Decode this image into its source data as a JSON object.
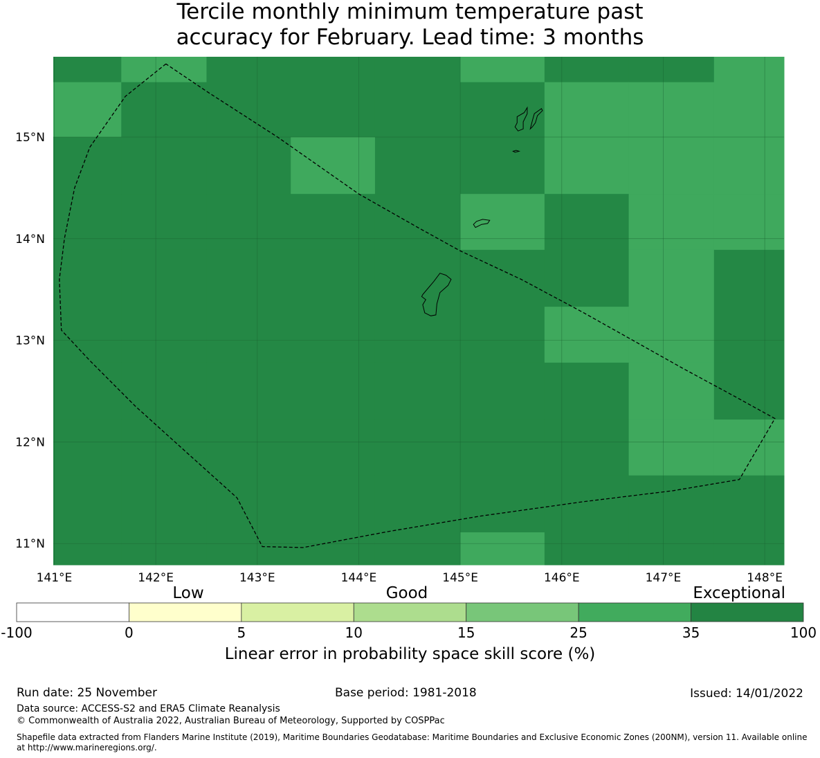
{
  "title_line1": "Tercile monthly minimum temperature past",
  "title_line2": "accuracy for February. Lead time: 3 months",
  "map": {
    "lon_labels": [
      "141°E",
      "142°E",
      "143°E",
      "144°E",
      "145°E",
      "146°E",
      "147°E",
      "148°E"
    ],
    "lat_labels": [
      "15°N",
      "14°N",
      "13°N",
      "12°N",
      "11°N"
    ],
    "lon_values": [
      141,
      142,
      143,
      144,
      145,
      146,
      147,
      148
    ],
    "lat_values": [
      15,
      14,
      13,
      12,
      11
    ],
    "extent": {
      "lon_min": 140.99,
      "lon_max": 148.19,
      "lat_min": 10.79,
      "lat_max": 15.79
    },
    "colors": {
      "dark": "#248845",
      "light": "#3fa95d",
      "grid": "#1a5e30",
      "outline": "#000000"
    },
    "score_grid_lons": [
      140.99,
      141.66,
      142.5,
      143.33,
      144.16,
      145.0,
      145.83,
      146.66,
      147.5,
      148.19
    ],
    "score_grid_lats": [
      15.79,
      15.54,
      15.0,
      14.44,
      13.89,
      13.33,
      12.78,
      12.22,
      11.67,
      11.11,
      10.79
    ],
    "score_grid": [
      [
        "dark",
        "light",
        "dark",
        "dark",
        "dark",
        "light",
        "dark",
        "dark",
        "light"
      ],
      [
        "light",
        "dark",
        "dark",
        "dark",
        "dark",
        "dark",
        "light",
        "light",
        "light"
      ],
      [
        "dark",
        "dark",
        "dark",
        "light",
        "dark",
        "dark",
        "light",
        "light",
        "light"
      ],
      [
        "dark",
        "dark",
        "dark",
        "dark",
        "dark",
        "light",
        "dark",
        "light",
        "light"
      ],
      [
        "dark",
        "dark",
        "dark",
        "dark",
        "dark",
        "dark",
        "dark",
        "light",
        "dark"
      ],
      [
        "dark",
        "dark",
        "dark",
        "dark",
        "dark",
        "dark",
        "light",
        "light",
        "dark"
      ],
      [
        "dark",
        "dark",
        "dark",
        "dark",
        "dark",
        "dark",
        "dark",
        "light",
        "dark"
      ],
      [
        "dark",
        "dark",
        "dark",
        "dark",
        "dark",
        "dark",
        "dark",
        "light",
        "light"
      ],
      [
        "dark",
        "dark",
        "dark",
        "dark",
        "dark",
        "dark",
        "dark",
        "dark",
        "dark"
      ],
      [
        "dark",
        "dark",
        "dark",
        "dark",
        "dark",
        "light",
        "dark",
        "dark",
        "dark"
      ]
    ],
    "eez_boundary": [
      [
        142.1,
        15.72
      ],
      [
        141.7,
        15.4
      ],
      [
        141.35,
        14.9
      ],
      [
        141.2,
        14.5
      ],
      [
        141.1,
        14.0
      ],
      [
        141.05,
        13.6
      ],
      [
        141.07,
        13.1
      ],
      [
        141.35,
        12.8
      ],
      [
        141.8,
        12.35
      ],
      [
        142.3,
        11.9
      ],
      [
        142.8,
        11.45
      ],
      [
        143.05,
        10.97
      ],
      [
        143.45,
        10.96
      ],
      [
        144.3,
        11.12
      ],
      [
        145.2,
        11.27
      ],
      [
        146.2,
        11.41
      ],
      [
        147.1,
        11.52
      ],
      [
        147.75,
        11.63
      ],
      [
        148.1,
        12.23
      ],
      [
        147.7,
        12.45
      ],
      [
        147.2,
        12.72
      ],
      [
        146.7,
        13.0
      ],
      [
        146.2,
        13.28
      ],
      [
        145.6,
        13.6
      ],
      [
        145.0,
        13.88
      ],
      [
        144.6,
        14.1
      ],
      [
        144.0,
        14.44
      ],
      [
        143.2,
        15.0
      ],
      [
        142.5,
        15.45
      ],
      [
        142.1,
        15.72
      ]
    ],
    "islands": [
      [
        [
          144.63,
          13.45
        ],
        [
          144.74,
          13.58
        ],
        [
          144.8,
          13.66
        ],
        [
          144.86,
          13.64
        ],
        [
          144.91,
          13.6
        ],
        [
          144.88,
          13.54
        ],
        [
          144.8,
          13.47
        ],
        [
          144.77,
          13.36
        ],
        [
          144.76,
          13.25
        ],
        [
          144.71,
          13.24
        ],
        [
          144.65,
          13.27
        ],
        [
          144.63,
          13.35
        ],
        [
          144.66,
          13.4
        ],
        [
          144.62,
          13.43
        ],
        [
          144.63,
          13.45
        ]
      ],
      [
        [
          145.56,
          15.2
        ],
        [
          145.63,
          15.24
        ],
        [
          145.66,
          15.29
        ],
        [
          145.66,
          15.23
        ],
        [
          145.62,
          15.15
        ],
        [
          145.62,
          15.08
        ],
        [
          145.57,
          15.06
        ],
        [
          145.54,
          15.1
        ],
        [
          145.56,
          15.14
        ],
        [
          145.56,
          15.2
        ]
      ],
      [
        [
          145.69,
          15.08
        ],
        [
          145.71,
          15.16
        ],
        [
          145.73,
          15.23
        ],
        [
          145.8,
          15.28
        ],
        [
          145.81,
          15.26
        ],
        [
          145.76,
          15.21
        ],
        [
          145.74,
          15.14
        ],
        [
          145.71,
          15.1
        ],
        [
          145.69,
          15.08
        ]
      ],
      [
        [
          145.13,
          14.14
        ],
        [
          145.16,
          14.17
        ],
        [
          145.22,
          14.19
        ],
        [
          145.29,
          14.18
        ],
        [
          145.27,
          14.15
        ],
        [
          145.21,
          14.14
        ],
        [
          145.15,
          14.11
        ],
        [
          145.13,
          14.14
        ]
      ],
      [
        [
          145.52,
          14.86
        ],
        [
          145.55,
          14.87
        ],
        [
          145.58,
          14.86
        ],
        [
          145.54,
          14.85
        ],
        [
          145.52,
          14.86
        ]
      ]
    ]
  },
  "legend": {
    "category_labels": [
      "Low",
      "Good",
      "Exceptional"
    ],
    "tick_labels": [
      "-100",
      "0",
      "5",
      "10",
      "15",
      "25",
      "35",
      "100"
    ],
    "colors": [
      "#ffffff",
      "#ffffcc",
      "#d9f0a3",
      "#addd8e",
      "#78c679",
      "#41ab5d",
      "#238443"
    ],
    "axis_label": "Linear error in probability space skill score (%)"
  },
  "footer": {
    "run_date": "Run date: 25 November",
    "base_period": "Base period: 1981-2018",
    "issued": "Issued: 14/01/2022",
    "data_source": "Data source: ACCESS-S2 and ERA5 Climate Reanalysis",
    "copyright": "© Commonwealth of Australia 2022, Australian Bureau of Meteorology, Supported by COSPPac",
    "shapefile_line1": "Shapefile data extracted from Flanders Marine Institute (2019), Maritime Boundaries Geodatabase: Maritime Boundaries and Exclusive Economic Zones (200NM), version 11. Available online",
    "shapefile_line2": "at http://www.marineregions.org/."
  }
}
